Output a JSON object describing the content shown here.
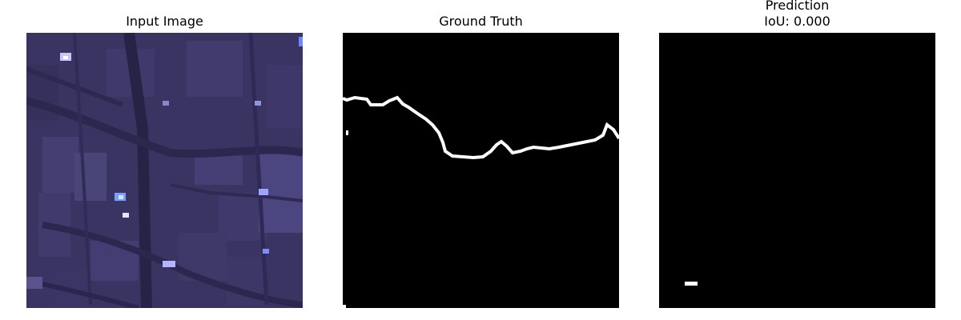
{
  "figure": {
    "panels": [
      {
        "title": "Input Image"
      },
      {
        "title": "Ground Truth"
      },
      {
        "title_line1": "Prediction",
        "title_line2": "IoU: 0.000"
      }
    ]
  },
  "colors": {
    "background": "#ffffff",
    "mask_background": "#000000",
    "mask_foreground": "#ffffff",
    "satellite_base": "#3a3463",
    "satellite_dark": "#2a2750",
    "satellite_light": "#4d4782"
  },
  "icons": []
}
